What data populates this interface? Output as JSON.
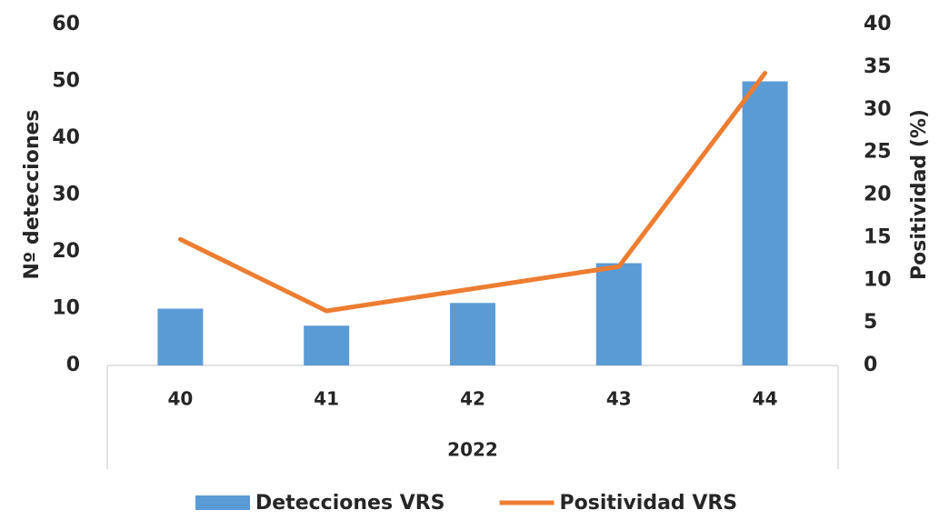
{
  "chart_data": {
    "type": "bar-line",
    "categories": [
      "40",
      "41",
      "42",
      "43",
      "44"
    ],
    "category_group": "2022",
    "y_label": "Nº detecciones",
    "y2_label": "Positividad (%)",
    "ylim": [
      0,
      60
    ],
    "yticks": [
      0,
      10,
      20,
      30,
      40,
      50,
      60
    ],
    "y2lim": [
      0,
      40
    ],
    "y2ticks": [
      0,
      5,
      10,
      15,
      20,
      25,
      30,
      35,
      40
    ],
    "grid": false,
    "legend": "bottom",
    "series": [
      {
        "name": "Detecciones VRS",
        "type": "bar",
        "color": "#5b9bd5",
        "values": [
          10,
          7,
          11,
          18,
          50
        ]
      },
      {
        "name": "Positividad VRS",
        "type": "line",
        "axis": "y2",
        "color": "#ed7d31",
        "values": [
          14.8,
          6.4,
          9.0,
          11.6,
          34.3
        ]
      }
    ]
  }
}
